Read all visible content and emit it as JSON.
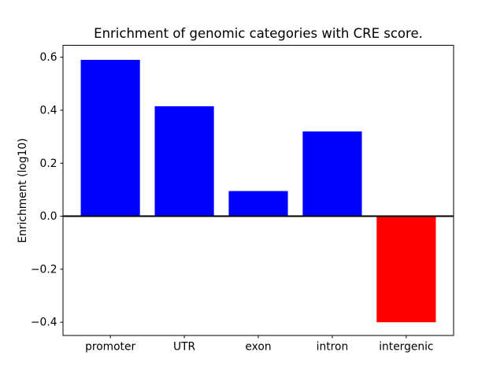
{
  "chart_data": {
    "type": "bar",
    "title": "Enrichment of genomic categories with CRE score.",
    "xlabel": "",
    "ylabel": "Enrichment (log10)",
    "categories": [
      "promoter",
      "UTR",
      "exon",
      "intron",
      "intergenic"
    ],
    "values": [
      0.59,
      0.415,
      0.095,
      0.32,
      -0.4
    ],
    "bar_colors": [
      "#0000ff",
      "#0000ff",
      "#0000ff",
      "#0000ff",
      "#ff0000"
    ],
    "positive_color": "#0000ff",
    "negative_color": "#ff0000",
    "yticks": [
      0.6,
      0.4,
      0.2,
      0.0,
      -0.2,
      -0.4
    ],
    "ytick_labels": [
      "0.6",
      "0.4",
      "0.2",
      "0.0",
      "−0.2",
      "−0.4"
    ],
    "ylim": [
      -0.45,
      0.645
    ],
    "bar_width_fraction": 0.8,
    "zero_line": true,
    "grid": false,
    "legend": "none"
  }
}
